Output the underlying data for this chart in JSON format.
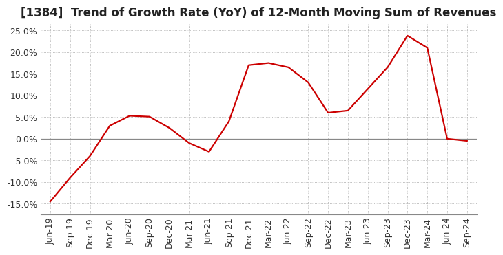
{
  "title": "[1384]  Trend of Growth Rate (YoY) of 12-Month Moving Sum of Revenues",
  "line_color": "#cc0000",
  "background_color": "#ffffff",
  "grid_color": "#aaaaaa",
  "zero_line_color": "#888888",
  "ylim": [
    -0.175,
    0.265
  ],
  "yticks": [
    -0.15,
    -0.1,
    -0.05,
    0.0,
    0.05,
    0.1,
    0.15,
    0.2,
    0.25
  ],
  "x_labels": [
    "Jun-19",
    "Sep-19",
    "Dec-19",
    "Mar-20",
    "Jun-20",
    "Sep-20",
    "Dec-20",
    "Mar-21",
    "Jun-21",
    "Sep-21",
    "Dec-21",
    "Mar-22",
    "Jun-22",
    "Sep-22",
    "Dec-22",
    "Mar-23",
    "Jun-23",
    "Sep-23",
    "Dec-23",
    "Mar-24",
    "Jun-24",
    "Sep-24"
  ],
  "values": [
    -0.145,
    -0.09,
    -0.04,
    0.03,
    0.053,
    0.051,
    0.025,
    -0.01,
    -0.03,
    0.04,
    0.17,
    0.175,
    0.165,
    0.13,
    0.06,
    0.065,
    0.115,
    0.165,
    0.238,
    0.21,
    0.0,
    -0.005
  ],
  "title_fontsize": 12,
  "tick_fontsize": 9,
  "line_width": 1.6
}
